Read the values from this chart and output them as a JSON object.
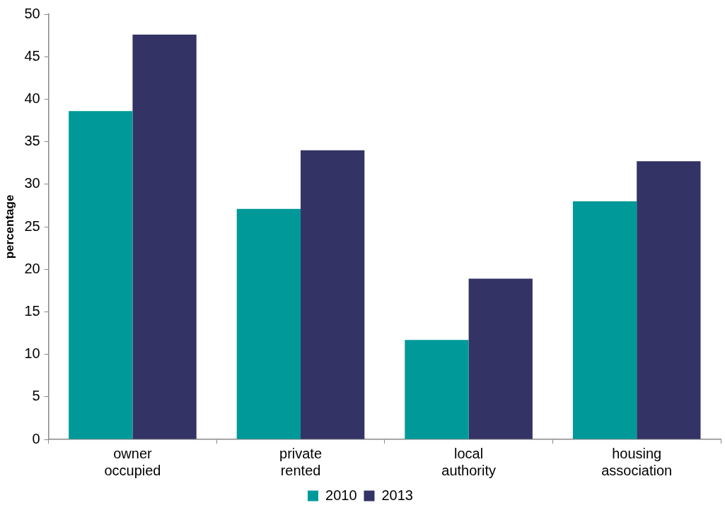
{
  "chart_data": {
    "type": "bar",
    "ylabel": "percentage",
    "categories": [
      "owner occupied",
      "private rented",
      "local authority",
      "housing association"
    ],
    "series": [
      {
        "name": "2010",
        "color": "#009999",
        "values": [
          38.6,
          27.1,
          11.7,
          28.0
        ]
      },
      {
        "name": "2013",
        "color": "#333366",
        "values": [
          47.6,
          34.0,
          18.9,
          32.7
        ]
      }
    ],
    "ylim": [
      0,
      50
    ],
    "yticks": [
      0,
      5,
      10,
      15,
      20,
      25,
      30,
      35,
      40,
      45,
      50
    ],
    "grid": false,
    "legend": "bottom"
  }
}
